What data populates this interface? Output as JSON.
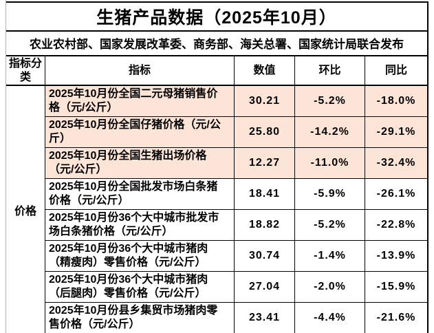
{
  "title": "生猪产品数据（2025年10月）",
  "subtitle": "农业农村部、国家发展改革委、商务部、海关总署、国家统计局联合发布",
  "columns": {
    "category": "指标分类",
    "indicator": "指标",
    "value": "数值",
    "mom": "环比",
    "yoy": "同比"
  },
  "category_label": "价格",
  "rows": [
    {
      "indicator": "2025年10月份全国二元母猪销售价格（元/公斤）",
      "value": "30.21",
      "mom": "-5.2%",
      "yoy": "-18.0%",
      "highlight": true
    },
    {
      "indicator": "2025年10月份全国仔猪价格（元/公斤）",
      "value": "25.80",
      "mom": "-14.2%",
      "yoy": "-29.1%",
      "highlight": true
    },
    {
      "indicator": "2025年10月份全国生猪出场价格（元/公斤）",
      "value": "12.27",
      "mom": "-11.0%",
      "yoy": "-32.4%",
      "highlight": true
    },
    {
      "indicator": "2025年10月份全国批发市场白条猪价格（元/公斤）",
      "value": "18.41",
      "mom": "-5.9%",
      "yoy": "-26.1%",
      "highlight": false
    },
    {
      "indicator": "2025年10月份36个大中城市批发市场白条猪价格（元/公斤）",
      "value": "18.82",
      "mom": "-5.2%",
      "yoy": "-22.8%",
      "highlight": false
    },
    {
      "indicator": "2025年10月份36个大中城市猪肉（精瘦肉）零售价格（元/公斤）",
      "value": "30.74",
      "mom": "-1.4%",
      "yoy": "-13.9%",
      "highlight": false
    },
    {
      "indicator": "2025年10月份36个大中城市猪肉（后腿肉）零售价格（元/公斤）",
      "value": "27.04",
      "mom": "-2.0%",
      "yoy": "-15.9%",
      "highlight": false
    },
    {
      "indicator": "2025年10月份县乡集贸市场猪肉零售价格（元/公斤）",
      "value": "23.41",
      "mom": "-4.4%",
      "yoy": "-21.6%",
      "highlight": false
    }
  ],
  "colors": {
    "highlight_bg": "#fce4d6",
    "border": "#000000",
    "text": "#000000",
    "gutter_line": "#adadad"
  }
}
